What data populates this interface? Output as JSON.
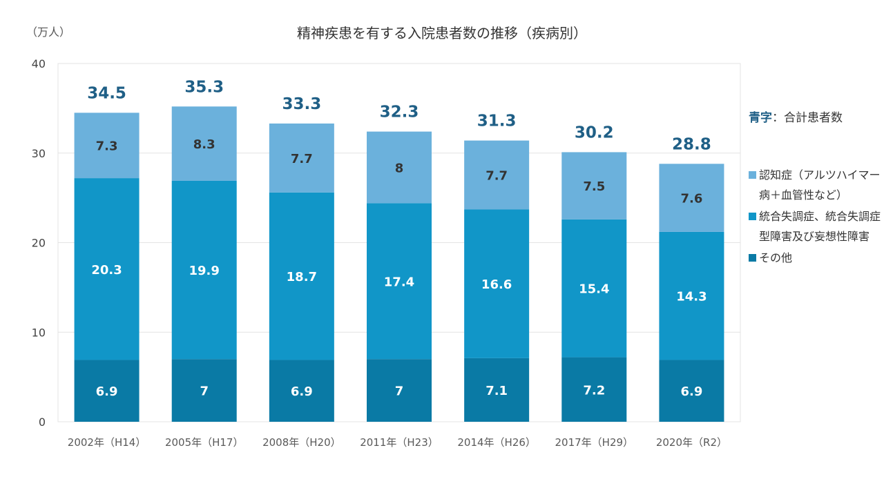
{
  "unit_label": "（万人）",
  "chart_data": {
    "type": "bar",
    "stacked": true,
    "title": "精神疾患を有する入院患者数の推移（疾病別）",
    "categories": [
      "2002年（H14）",
      "2005年（H17）",
      "2008年（H20）",
      "2011年（H23）",
      "2014年（H26）",
      "2017年（H29）",
      "2020年（R2）"
    ],
    "series": [
      {
        "name": "その他",
        "color": "#0a7aa5",
        "label_color": "#ffffff",
        "values": [
          6.9,
          7,
          6.9,
          7,
          7.1,
          7.2,
          6.9
        ]
      },
      {
        "name": "統合失調症、統合失調症型障害及び妄想性障害",
        "color": "#1196c8",
        "label_color": "#ffffff",
        "values": [
          20.3,
          19.9,
          18.7,
          17.4,
          16.6,
          15.4,
          14.3
        ]
      },
      {
        "name": "認知症（アルツハイマー病＋血管性など）",
        "color": "#6bb1dc",
        "label_color": "#333333",
        "values": [
          7.3,
          8.3,
          7.7,
          8,
          7.7,
          7.5,
          7.6
        ]
      }
    ],
    "totals": [
      34.5,
      35.3,
      33.3,
      32.3,
      31.3,
      30.2,
      28.8
    ],
    "ylim": [
      0,
      40
    ],
    "yticks": [
      0,
      10,
      20,
      30,
      40
    ],
    "grid": true,
    "legend_position": "right"
  },
  "legend": {
    "note_key": "青字",
    "note_text": "：合計患者数",
    "items": [
      {
        "label": "認知症（アルツハイマー病＋血管性など）",
        "color": "#6bb1dc"
      },
      {
        "label": "統合失調症、統合失調症型障害及び妄想性障害",
        "color": "#1196c8"
      },
      {
        "label": "その他",
        "color": "#0a7aa5"
      }
    ]
  }
}
